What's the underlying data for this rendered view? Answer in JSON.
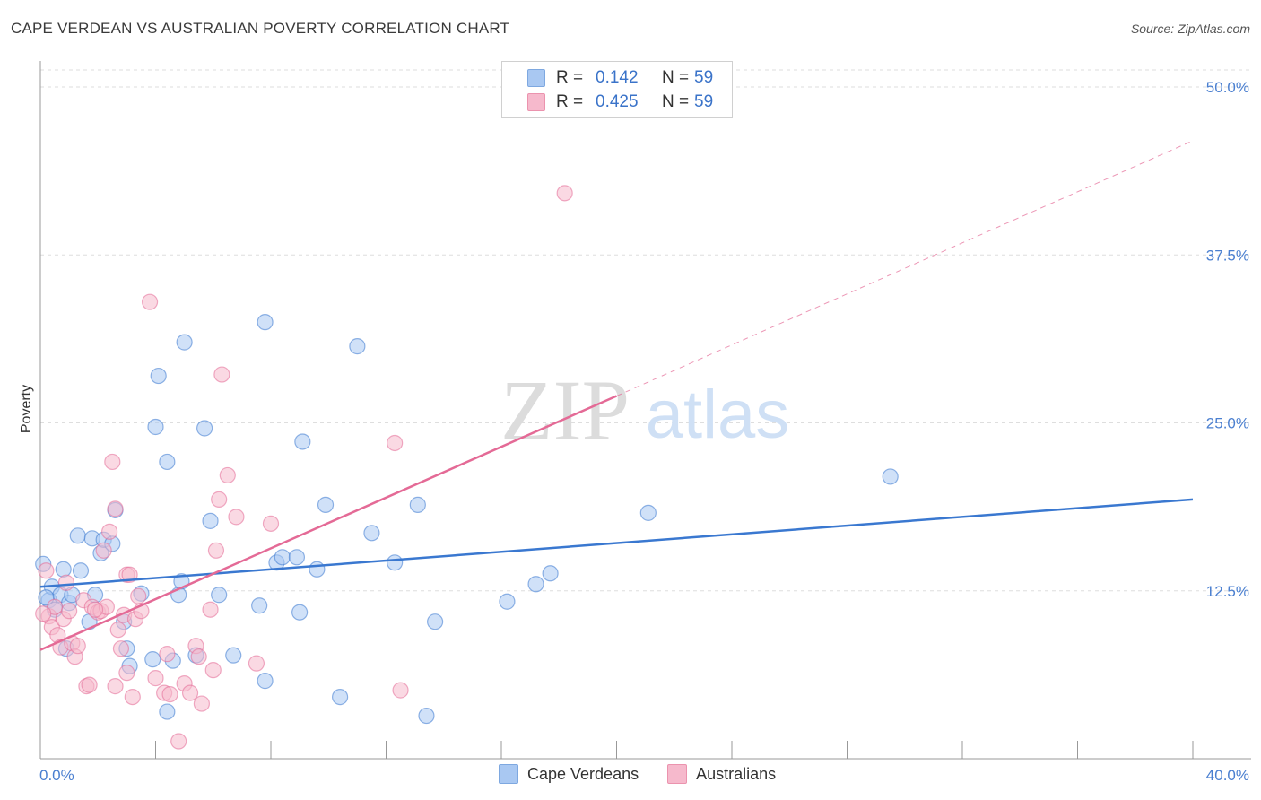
{
  "header": {
    "title": "CAPE VERDEAN VS AUSTRALIAN POVERTY CORRELATION CHART",
    "source": "Source: ZipAtlas.com"
  },
  "watermark": {
    "zip": "ZIP",
    "atlas": "atlas"
  },
  "legend": {
    "rows": [
      {
        "r_label": "R =",
        "r_value": "0.142",
        "n_label": "N =",
        "n_value": "59",
        "color": "#a9c8f2"
      },
      {
        "r_label": "R =",
        "r_value": "0.425",
        "n_label": "N =",
        "n_value": "59",
        "color": "#f6b9cc"
      }
    ]
  },
  "bottom_legend": [
    {
      "label": "Cape Verdeans",
      "color": "#a9c8f2"
    },
    {
      "label": "Australians",
      "color": "#f6b9cc"
    }
  ],
  "chart_data": {
    "type": "scatter",
    "title": "CAPE VERDEAN VS AUSTRALIAN POVERTY CORRELATION CHART",
    "xlabel": "",
    "ylabel": "Poverty",
    "xlim": [
      0,
      40
    ],
    "ylim": [
      0,
      50
    ],
    "x_tick_labels": [
      "0.0%",
      "40.0%"
    ],
    "y_ticks": [
      12.5,
      25.0,
      37.5,
      50.0
    ],
    "y_tick_labels": [
      "12.5%",
      "25.0%",
      "37.5%",
      "50.0%"
    ],
    "grid": true,
    "legend_position": "top-center",
    "series": [
      {
        "name": "Cape Verdeans",
        "color": "#3a78d0",
        "fill": "#a9c8f2",
        "trend": {
          "x": [
            0,
            40
          ],
          "y": [
            12.8,
            19.3
          ],
          "dashed_extension": false
        },
        "points": [
          [
            0.1,
            14.5
          ],
          [
            0.3,
            11.8
          ],
          [
            0.4,
            12.8
          ],
          [
            0.5,
            11.1
          ],
          [
            0.7,
            12.2
          ],
          [
            0.8,
            14.1
          ],
          [
            0.9,
            8.2
          ],
          [
            1.0,
            11.6
          ],
          [
            1.1,
            12.2
          ],
          [
            1.3,
            16.6
          ],
          [
            1.4,
            14.0
          ],
          [
            1.7,
            10.2
          ],
          [
            1.8,
            16.4
          ],
          [
            1.9,
            12.2
          ],
          [
            2.1,
            15.3
          ],
          [
            2.2,
            16.3
          ],
          [
            2.5,
            16.0
          ],
          [
            2.6,
            18.5
          ],
          [
            2.9,
            10.2
          ],
          [
            3.0,
            8.2
          ],
          [
            3.1,
            6.9
          ],
          [
            3.5,
            12.3
          ],
          [
            3.9,
            7.4
          ],
          [
            4.0,
            24.7
          ],
          [
            4.1,
            28.5
          ],
          [
            4.4,
            22.1
          ],
          [
            4.4,
            3.5
          ],
          [
            4.6,
            7.3
          ],
          [
            4.8,
            12.2
          ],
          [
            4.9,
            13.2
          ],
          [
            5.0,
            31.0
          ],
          [
            5.4,
            7.7
          ],
          [
            5.7,
            24.6
          ],
          [
            5.9,
            17.7
          ],
          [
            6.2,
            12.2
          ],
          [
            6.7,
            7.7
          ],
          [
            7.6,
            11.4
          ],
          [
            7.8,
            5.8
          ],
          [
            7.8,
            32.5
          ],
          [
            8.2,
            14.6
          ],
          [
            8.4,
            15.0
          ],
          [
            8.9,
            15.0
          ],
          [
            9.0,
            10.9
          ],
          [
            9.1,
            23.6
          ],
          [
            9.6,
            14.1
          ],
          [
            9.9,
            18.9
          ],
          [
            10.4,
            4.6
          ],
          [
            11.0,
            30.7
          ],
          [
            11.5,
            16.8
          ],
          [
            12.3,
            14.6
          ],
          [
            13.1,
            18.9
          ],
          [
            13.4,
            3.2
          ],
          [
            13.7,
            10.2
          ],
          [
            16.2,
            11.7
          ],
          [
            17.2,
            13.0
          ],
          [
            17.7,
            13.8
          ],
          [
            21.1,
            18.3
          ],
          [
            29.5,
            21.0
          ],
          [
            0.2,
            12.0
          ]
        ]
      },
      {
        "name": "Australians",
        "color": "#e46a96",
        "fill": "#f6b9cc",
        "trend": {
          "x": [
            0,
            20
          ],
          "y": [
            8.1,
            27.0
          ],
          "dashed_extension": true,
          "dashed_to": [
            40,
            46.0
          ]
        },
        "points": [
          [
            0.2,
            14.0
          ],
          [
            0.3,
            10.6
          ],
          [
            0.4,
            9.8
          ],
          [
            0.5,
            11.3
          ],
          [
            0.6,
            9.2
          ],
          [
            0.7,
            8.3
          ],
          [
            0.8,
            10.4
          ],
          [
            0.9,
            13.1
          ],
          [
            1.0,
            11.0
          ],
          [
            1.1,
            8.6
          ],
          [
            1.2,
            7.6
          ],
          [
            1.3,
            8.4
          ],
          [
            1.5,
            11.8
          ],
          [
            1.6,
            5.4
          ],
          [
            1.7,
            5.5
          ],
          [
            1.8,
            11.3
          ],
          [
            2.0,
            10.9
          ],
          [
            2.1,
            11.0
          ],
          [
            2.2,
            15.5
          ],
          [
            2.3,
            11.3
          ],
          [
            2.4,
            16.9
          ],
          [
            2.5,
            22.1
          ],
          [
            2.6,
            5.4
          ],
          [
            2.6,
            18.6
          ],
          [
            2.7,
            9.6
          ],
          [
            2.8,
            8.2
          ],
          [
            2.9,
            10.7
          ],
          [
            3.0,
            13.7
          ],
          [
            3.0,
            6.4
          ],
          [
            3.1,
            13.7
          ],
          [
            3.2,
            4.6
          ],
          [
            3.3,
            10.4
          ],
          [
            3.4,
            12.1
          ],
          [
            3.5,
            11.0
          ],
          [
            3.8,
            34.0
          ],
          [
            4.0,
            6.0
          ],
          [
            4.3,
            4.9
          ],
          [
            4.4,
            7.8
          ],
          [
            4.5,
            4.8
          ],
          [
            4.8,
            1.3
          ],
          [
            5.0,
            5.6
          ],
          [
            5.2,
            4.9
          ],
          [
            5.4,
            8.4
          ],
          [
            5.5,
            7.6
          ],
          [
            5.6,
            4.1
          ],
          [
            5.9,
            11.1
          ],
          [
            6.0,
            6.6
          ],
          [
            6.1,
            15.5
          ],
          [
            6.2,
            19.3
          ],
          [
            6.3,
            28.6
          ],
          [
            6.5,
            21.1
          ],
          [
            6.8,
            18.0
          ],
          [
            7.5,
            7.1
          ],
          [
            8.0,
            17.5
          ],
          [
            12.3,
            23.5
          ],
          [
            12.5,
            5.1
          ],
          [
            18.2,
            42.1
          ],
          [
            0.1,
            10.8
          ],
          [
            1.9,
            11.1
          ]
        ]
      }
    ]
  }
}
